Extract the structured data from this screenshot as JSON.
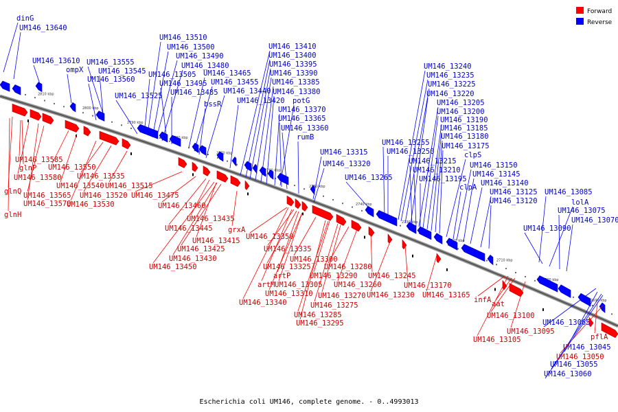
{
  "colors": {
    "forward": "#ff0000",
    "reverse": "#0000ff",
    "forward_text": "#cc0000",
    "reverse_text": "#0000cc",
    "backbone": "#555555"
  },
  "legend": {
    "forward": "Forward",
    "reverse": "Reverse"
  },
  "caption": "Escherichia coli UM146, complete genome. - 0..4993013",
  "ruler": [
    "2810 kbp",
    "2800 kbp",
    "2790 kbp",
    "2780 kbp",
    "2770 kbp",
    "2760 kbp",
    "2750 kbp",
    "2740 kbp",
    "2730 kbp",
    "2720 kbp",
    "2710 kbp",
    "2700 kbp",
    "2690 kbp"
  ],
  "reverse_labels": [
    "dinG",
    "UM146_13640",
    "UM146_13610",
    "ompX",
    "UM146_13555",
    "UM146_13545",
    "UM146_13560",
    "UM146_13525",
    "UM146_13510",
    "UM146_13500",
    "UM146_13490",
    "UM146_13480",
    "UM146_13505",
    "UM146_13465",
    "UM146_13495",
    "UM146_13455",
    "UM146_13485",
    "UM146_13440",
    "bssR",
    "UM146_13420",
    "UM146_13410",
    "UM146_13400",
    "UM146_13395",
    "UM146_13390",
    "UM146_13385",
    "UM146_13380",
    "potG",
    "UM146_13370",
    "UM146_13365",
    "UM146_13360",
    "rumB",
    "UM146_13315",
    "UM146_13320",
    "UM146_13265",
    "UM146_13240",
    "UM146_13235",
    "UM146_13225",
    "UM146_13220",
    "UM146_13205",
    "UM146_13200",
    "UM146_13190",
    "UM146_13185",
    "UM146_13180",
    "UM146_13175",
    "UM146_13255",
    "UM146_13250",
    "clpS",
    "UM146_13215",
    "UM146_13150",
    "UM146_13210",
    "UM146_13145",
    "UM146_13195",
    "UM146_13140",
    "clpA",
    "UM146_13125",
    "UM146_13085",
    "UM146_13120",
    "lolA",
    "UM146_13075",
    "UM146_13090",
    "UM146_13070",
    "UM146_13065",
    "UM146_13045",
    "UM146_13055",
    "UM146_13060"
  ],
  "forward_labels": [
    "UM146_13585",
    "glnP",
    "UM146_13580",
    "glnQ",
    "UM146_13565",
    "UM146_13570",
    "glnH",
    "UM146_13550",
    "UM146_13540",
    "UM146_13535",
    "UM146_13520",
    "UM146_13530",
    "UM146_13515",
    "UM146_13475",
    "UM146_13460",
    "UM146_13435",
    "UM146_13445",
    "UM146_13415",
    "UM146_13425",
    "UM146_13430",
    "UM146_13450",
    "grxA",
    "UM146_13350",
    "UM146_13335",
    "UM146_13325",
    "artP",
    "UM146_13300",
    "artM",
    "UM146_13305",
    "UM146_13290",
    "UM146_13310",
    "UM146_13280",
    "UM146_13340",
    "UM146_13260",
    "UM146_13270",
    "UM146_13275",
    "UM146_13285",
    "UM146_13295",
    "UM146_13245",
    "UM146_13230",
    "UM146_13170",
    "UM146_13165",
    "infA",
    "aat",
    "UM146_13100",
    "UM146_13095",
    "UM146_13105",
    "pflA",
    "UM146_13050"
  ]
}
